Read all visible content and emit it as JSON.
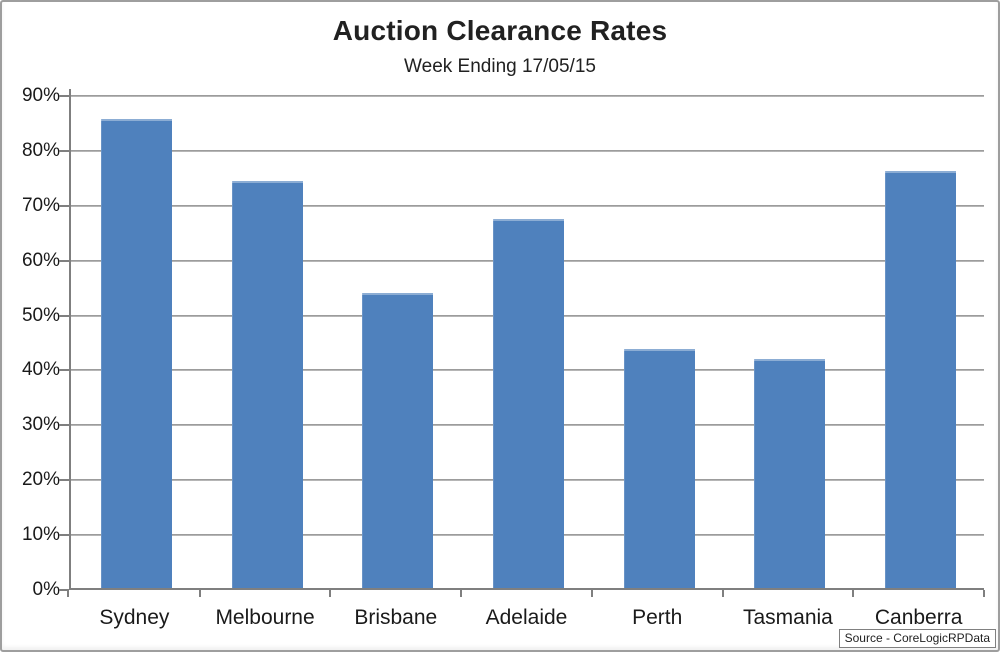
{
  "header": {
    "title": "Auction Clearance Rates",
    "subtitle": "Week Ending 17/05/15"
  },
  "source_note": "Source - CoreLogicRPData",
  "colors": {
    "bar": "#4F81BD",
    "gridline": "#a0a0a0",
    "axis": "#7f7f7f",
    "text": "#1a1a1a",
    "frame_border": "#9e9e9e"
  },
  "chart_data": {
    "type": "bar",
    "title": "Auction Clearance Rates",
    "subtitle": "Week Ending 17/05/15",
    "categories": [
      "Sydney",
      "Melbourne",
      "Brisbane",
      "Adelaide",
      "Perth",
      "Tasmania",
      "Canberra"
    ],
    "values": [
      85.5,
      74.2,
      53.7,
      67.2,
      43.5,
      41.7,
      75.9
    ],
    "unit": "%",
    "xlabel": "",
    "ylabel": "",
    "ylim": [
      0,
      90
    ],
    "ytick_step": 10,
    "ytick_labels": [
      "0%",
      "10%",
      "20%",
      "30%",
      "40%",
      "50%",
      "60%",
      "70%",
      "80%",
      "90%"
    ],
    "grid": "horizontal",
    "legend_position": "none",
    "bar_color": "#4F81BD",
    "annotation": "Source - CoreLogicRPData"
  }
}
